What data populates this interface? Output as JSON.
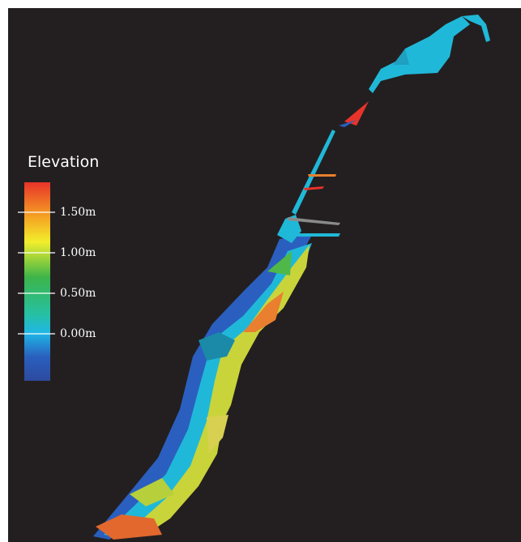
{
  "legend": {
    "title": "Elevation",
    "lim": [
      -0.58,
      1.87
    ],
    "ticks": [
      {
        "value": 1.5,
        "label": "1.50m"
      },
      {
        "value": 1.0,
        "label": "1.00m"
      },
      {
        "value": 0.5,
        "label": "0.50m"
      },
      {
        "value": 0.0,
        "label": "0.00m"
      }
    ]
  }
}
